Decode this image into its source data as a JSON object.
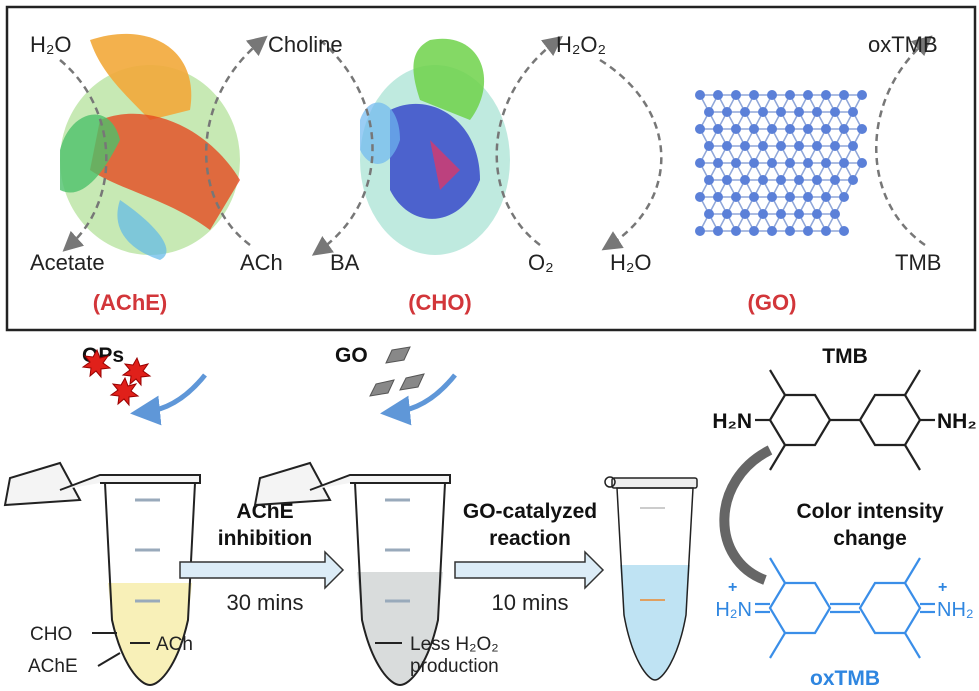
{
  "top_panel": {
    "ache": {
      "label": "(AChE)",
      "inputs": [
        "ACh",
        "H₂O"
      ],
      "outputs": [
        "Choline",
        "Acetate"
      ]
    },
    "cho": {
      "label": "(CHO)",
      "inputs": [
        "Choline",
        "O₂"
      ],
      "outputs": [
        "H₂O₂",
        "BA"
      ]
    },
    "go": {
      "label": "(GO)",
      "inputs": [
        "H₂O₂",
        "TMB"
      ],
      "outputs": [
        "H₂O",
        "oxTMB"
      ]
    },
    "texts": {
      "h2o_in": "H₂O",
      "choline": "Choline",
      "h2o2": "H₂O₂",
      "oxtmb": "oxTMB",
      "acetate": "Acetate",
      "ach": "ACh",
      "ba": "BA",
      "o2": "O₂",
      "h2o_out": "H₂O",
      "tmb": "TMB"
    }
  },
  "bottom_panel": {
    "ops_label": "OPs",
    "go_label": "GO",
    "step1": {
      "line1": "AChE",
      "line2": "inhibition",
      "time": "30 mins"
    },
    "step2": {
      "line1": "GO-catalyzed",
      "line2": "reaction",
      "time": "10 mins"
    },
    "tube1_labels": {
      "cho": "CHO",
      "ache": "AChE",
      "ach": "ACh"
    },
    "tube2_labels": {
      "line1": "Less H₂O₂",
      "line2": "production"
    },
    "tmb": {
      "label": "TMB",
      "left_group": "H₂N",
      "right_group": "NH₂"
    },
    "color_change": {
      "line1": "Color intensity",
      "line2": "change"
    },
    "oxtmb": {
      "label": "oxTMB",
      "left_group": "H₂N",
      "right_group": "NH₂",
      "charge": "+"
    }
  },
  "colors": {
    "enzyme_label": "#d2363a",
    "oxtmb": "#2f86e0",
    "go_atom": "#5b80d8",
    "tube1_fill": "#f8f0b8",
    "tube2_fill": "#d9dcdc",
    "tube3_fill": "#bfe3f3",
    "process_arrow": "#dcecf7",
    "ops_marker": "#e0201a"
  }
}
